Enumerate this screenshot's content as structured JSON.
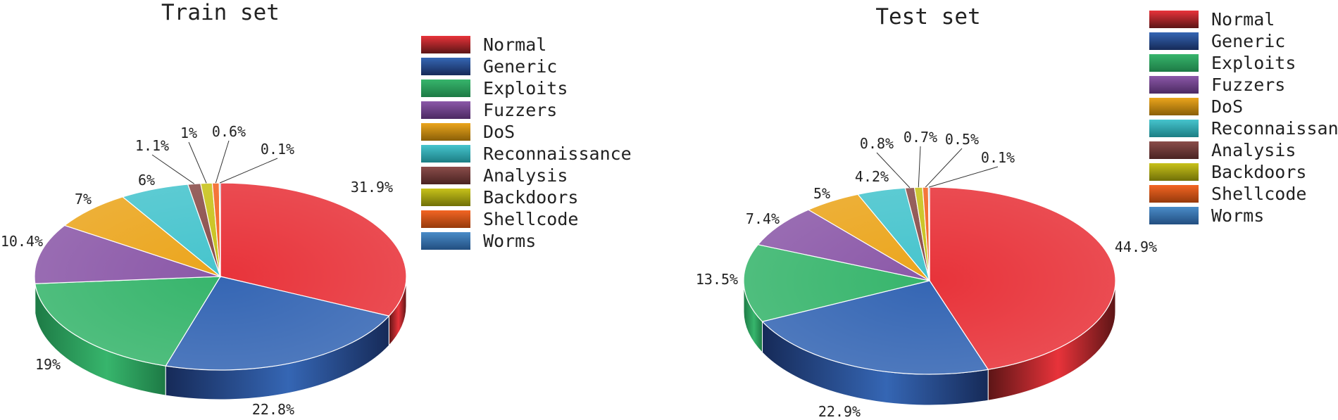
{
  "chart_data": [
    {
      "type": "pie",
      "title": "Train set",
      "categories": [
        "Normal",
        "Generic",
        "Exploits",
        "Fuzzers",
        "DoS",
        "Reconnaissance",
        "Analysis",
        "Backdoors",
        "Shellcode",
        "Worms"
      ],
      "values": [
        31.9,
        22.8,
        19,
        10.4,
        7,
        6,
        1.1,
        1,
        0.6,
        0.1
      ],
      "labels": [
        "31.9%",
        "22.8%",
        "19%",
        "10.4%",
        "7%",
        "6%",
        "1.1%",
        "1%",
        "0.6%",
        "0.1%"
      ],
      "legend_position": "right",
      "style": "3d"
    },
    {
      "type": "pie",
      "title": "Test set",
      "categories": [
        "Normal",
        "Generic",
        "Exploits",
        "Fuzzers",
        "DoS",
        "Reconnaissance",
        "Analysis",
        "Backdoors",
        "Shellcode",
        "Worms"
      ],
      "values": [
        44.9,
        22.9,
        13.5,
        7.4,
        5,
        4.2,
        0.8,
        0.7,
        0.5,
        0.1
      ],
      "labels": [
        "44.9%",
        "22.9%",
        "13.5%",
        "7.4%",
        "5%",
        "4.2%",
        "0.8%",
        "0.7%",
        "0.5%",
        "0.1%"
      ],
      "legend_position": "right",
      "style": "3d"
    }
  ],
  "colors": [
    "#e8333a",
    "#3566b4",
    "#37b56c",
    "#8b58a8",
    "#eba51c",
    "#46c4cd",
    "#8a4d4a",
    "#c8c21a",
    "#f36523",
    "#4a8cc8"
  ],
  "dark_colors": [
    "#5c1516",
    "#162a58",
    "#1d7a45",
    "#4c2a62",
    "#8a5f08",
    "#1c7e84",
    "#4a2322",
    "#707008",
    "#963a0c",
    "#224e80"
  ]
}
